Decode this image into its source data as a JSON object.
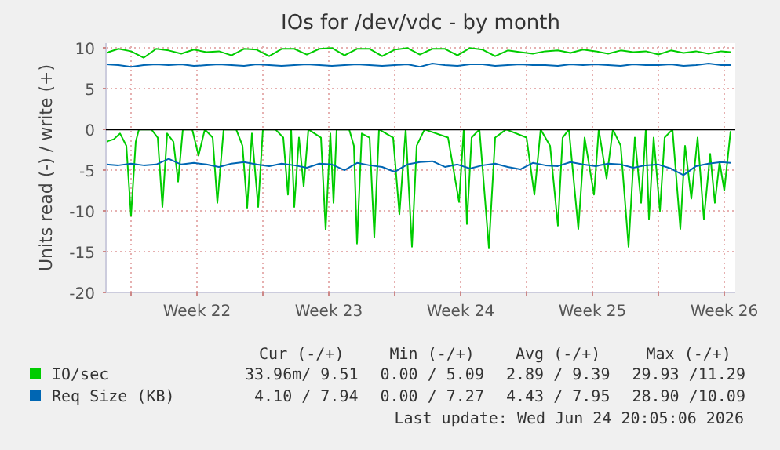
{
  "chart_data": {
    "type": "line",
    "title": "IOs for /dev/vdc - by month",
    "ylabel": "Units read (-) / write (+)",
    "xlim": [
      "2026-05-23T16:00",
      "2026-06-26T02:00"
    ],
    "ylim": [
      -20,
      10.6
    ],
    "xticks": [
      {
        "value": "2026-05-25",
        "label": null
      },
      {
        "value": "2026-05-28T12:00",
        "label": "Week 22"
      },
      {
        "value": "2026-06-01",
        "label": null
      },
      {
        "value": "2026-06-04T12:00",
        "label": "Week 23"
      },
      {
        "value": "2026-06-08",
        "label": null
      },
      {
        "value": "2026-06-11T12:00",
        "label": "Week 24"
      },
      {
        "value": "2026-06-15",
        "label": null
      },
      {
        "value": "2026-06-18T12:00",
        "label": "Week 25"
      },
      {
        "value": "2026-06-22",
        "label": null
      },
      {
        "value": "2026-06-25T12:00",
        "label": "Week 26"
      }
    ],
    "yticks": [
      -20,
      -15,
      -10,
      -5,
      0,
      5,
      10
    ],
    "grid": true,
    "legend": "bottom",
    "line_style": "solid",
    "ref_lines": [
      {
        "axis": "y",
        "value": 0,
        "color": "#000000"
      }
    ],
    "annotations": [
      "Cur (-/+)",
      "Min (-/+)",
      "Avg (-/+)",
      "Max (-/+)",
      "33.96m/ 9.51",
      "0.00 / 5.09",
      "2.89 / 9.39",
      "29.93 /11.29",
      "4.10 / 7.94",
      "0.00 / 7.27",
      "4.43 / 7.95",
      "28.90 /10.09",
      "Last update: Wed Jun 24 20:05:06 2026"
    ],
    "series": [
      {
        "name": "IO/sec",
        "color": "#00cc00",
        "x": [
          "2026-05-23T16:00",
          "2026-05-24T08:00",
          "2026-05-25T00:00",
          "2026-05-25T16:00",
          "2026-05-26T08:00",
          "2026-05-27T00:00",
          "2026-05-27T16:00",
          "2026-05-28T08:00",
          "2026-05-29T00:00",
          "2026-05-29T16:00",
          "2026-05-30T08:00",
          "2026-05-31T00:00",
          "2026-05-31T16:00",
          "2026-06-01T08:00",
          "2026-06-02T00:00",
          "2026-06-02T16:00",
          "2026-06-03T08:00",
          "2026-06-04T00:00",
          "2026-06-04T16:00",
          "2026-06-05T08:00",
          "2026-06-06T00:00",
          "2026-06-06T16:00",
          "2026-06-07T08:00",
          "2026-06-08T00:00",
          "2026-06-08T16:00",
          "2026-06-09T08:00",
          "2026-06-10T00:00",
          "2026-06-10T16:00",
          "2026-06-11T08:00",
          "2026-06-12T00:00",
          "2026-06-12T16:00",
          "2026-06-13T08:00",
          "2026-06-14T00:00",
          "2026-06-14T16:00",
          "2026-06-15T08:00",
          "2026-06-16T00:00",
          "2026-06-16T16:00",
          "2026-06-17T08:00",
          "2026-06-18T00:00",
          "2026-06-18T16:00",
          "2026-06-19T08:00",
          "2026-06-20T00:00",
          "2026-06-20T16:00",
          "2026-06-21T08:00",
          "2026-06-22T00:00",
          "2026-06-22T16:00",
          "2026-06-23T08:00",
          "2026-06-24T00:00",
          "2026-06-24T16:00",
          "2026-06-25T08:00",
          "2026-06-25T20:00"
        ],
        "values": [
          9.4,
          9.9,
          9.6,
          8.8,
          9.9,
          9.7,
          9.3,
          9.8,
          9.5,
          9.6,
          9.1,
          9.9,
          9.8,
          9.0,
          9.9,
          9.9,
          9.2,
          9.9,
          10.0,
          9.1,
          9.9,
          9.9,
          9.0,
          9.8,
          10.0,
          9.2,
          9.9,
          9.9,
          9.1,
          10.0,
          9.8,
          9.0,
          9.7,
          9.5,
          9.3,
          9.6,
          9.7,
          9.4,
          9.8,
          9.6,
          9.3,
          9.7,
          9.5,
          9.6,
          9.2,
          9.7,
          9.4,
          9.6,
          9.3,
          9.6,
          9.5
        ]
      },
      {
        "color": "#00cc00",
        "x": [
          "2026-05-23T16:00",
          "2026-05-24T02:00",
          "2026-05-24T10:00",
          "2026-05-24T18:00",
          "2026-05-25T00:00",
          "2026-05-25T06:00",
          "2026-05-25T10:00",
          "2026-05-26T02:00",
          "2026-05-26T10:00",
          "2026-05-26T16:00",
          "2026-05-26T22:00",
          "2026-05-27T06:00",
          "2026-05-27T12:00",
          "2026-05-27T18:00",
          "2026-05-28T06:00",
          "2026-05-28T14:00",
          "2026-05-28T22:00",
          "2026-05-29T08:00",
          "2026-05-29T14:00",
          "2026-05-29T22:00",
          "2026-05-30T14:00",
          "2026-05-30T22:00",
          "2026-05-31T04:00",
          "2026-05-31T10:00",
          "2026-05-31T18:00",
          "2026-06-01T00:00",
          "2026-06-01T16:00",
          "2026-06-02T02:00",
          "2026-06-02T08:00",
          "2026-06-02T12:00",
          "2026-06-02T16:00",
          "2026-06-02T22:00",
          "2026-06-03T04:00",
          "2026-06-03T10:00",
          "2026-06-04T02:00",
          "2026-06-04T08:00",
          "2026-06-04T14:00",
          "2026-06-04T18:00",
          "2026-06-04T22:00",
          "2026-06-05T14:00",
          "2026-06-05T20:00",
          "2026-06-06T00:00",
          "2026-06-06T06:00",
          "2026-06-06T16:00",
          "2026-06-06T22:00",
          "2026-06-07T04:00",
          "2026-06-07T22:00",
          "2026-06-08T06:00",
          "2026-06-08T14:00",
          "2026-06-08T22:00",
          "2026-06-09T04:00",
          "2026-06-09T14:00",
          "2026-06-10T20:00",
          "2026-06-11T10:00",
          "2026-06-11T16:00",
          "2026-06-11T20:00",
          "2026-06-12T02:00",
          "2026-06-12T12:00",
          "2026-06-13T00:00",
          "2026-06-13T08:00",
          "2026-06-13T22:00",
          "2026-06-15T00:00",
          "2026-06-15T10:00",
          "2026-06-15T18:00",
          "2026-06-16T06:00",
          "2026-06-16T16:00",
          "2026-06-16T22:00",
          "2026-06-17T06:00",
          "2026-06-17T18:00",
          "2026-06-18T02:00",
          "2026-06-18T14:00",
          "2026-06-18T20:00",
          "2026-06-19T06:00",
          "2026-06-19T14:00",
          "2026-06-20T00:00",
          "2026-06-20T10:00",
          "2026-06-20T18:00",
          "2026-06-21T02:00",
          "2026-06-21T08:00",
          "2026-06-21T12:00",
          "2026-06-21T18:00",
          "2026-06-22T02:00",
          "2026-06-22T08:00",
          "2026-06-22T18:00",
          "2026-06-23T04:00",
          "2026-06-23T10:00",
          "2026-06-23T18:00",
          "2026-06-24T02:00",
          "2026-06-24T10:00",
          "2026-06-24T18:00",
          "2026-06-25T00:00",
          "2026-06-25T06:00",
          "2026-06-25T12:00",
          "2026-06-25T20:00"
        ],
        "values": [
          -1.5,
          -1.2,
          -0.5,
          -2,
          -10.6,
          -1.5,
          0,
          0,
          -1,
          -9.5,
          -0.5,
          -1.5,
          -6.4,
          0,
          0,
          -3.2,
          0,
          -1,
          -9,
          0,
          0,
          -2,
          -9.6,
          -0.5,
          -9.5,
          0,
          0,
          -1,
          -8,
          0,
          -9.5,
          -1,
          -7,
          0,
          -1,
          -12.3,
          -0.5,
          -9,
          0,
          0,
          -2,
          -14,
          -0.5,
          -1,
          -13.2,
          0,
          -1,
          -10.4,
          0,
          -14.4,
          -2,
          0,
          -1,
          -8.9,
          0,
          -11.6,
          -1,
          0,
          -14.5,
          -1,
          0,
          -1,
          -8,
          0,
          -2,
          -11.8,
          -1,
          0,
          -12.2,
          -1,
          -8,
          0,
          -6,
          0,
          -2,
          -14.4,
          -1,
          -9,
          0,
          -11,
          -1,
          -10,
          -1,
          0,
          -12.2,
          -2,
          -8.5,
          -1,
          -11,
          -3,
          -9,
          -4,
          -7.5,
          -0.2
        ]
      },
      {
        "name": "Req Size (KB)",
        "color": "#0066b3",
        "x": [
          "2026-05-23T16:00",
          "2026-05-24T08:00",
          "2026-05-25T00:00",
          "2026-05-25T16:00",
          "2026-05-26T08:00",
          "2026-05-27T00:00",
          "2026-05-27T16:00",
          "2026-05-28T08:00",
          "2026-05-29T00:00",
          "2026-05-29T16:00",
          "2026-05-30T08:00",
          "2026-05-31T00:00",
          "2026-05-31T16:00",
          "2026-06-01T08:00",
          "2026-06-02T00:00",
          "2026-06-02T16:00",
          "2026-06-03T08:00",
          "2026-06-04T00:00",
          "2026-06-04T16:00",
          "2026-06-05T08:00",
          "2026-06-06T00:00",
          "2026-06-06T16:00",
          "2026-06-07T08:00",
          "2026-06-08T00:00",
          "2026-06-08T16:00",
          "2026-06-09T08:00",
          "2026-06-10T00:00",
          "2026-06-10T16:00",
          "2026-06-11T08:00",
          "2026-06-12T00:00",
          "2026-06-12T16:00",
          "2026-06-13T08:00",
          "2026-06-14T00:00",
          "2026-06-14T16:00",
          "2026-06-15T08:00",
          "2026-06-16T00:00",
          "2026-06-16T16:00",
          "2026-06-17T08:00",
          "2026-06-18T00:00",
          "2026-06-18T16:00",
          "2026-06-19T08:00",
          "2026-06-20T00:00",
          "2026-06-20T16:00",
          "2026-06-21T08:00",
          "2026-06-22T00:00",
          "2026-06-22T16:00",
          "2026-06-23T08:00",
          "2026-06-24T00:00",
          "2026-06-24T16:00",
          "2026-06-25T08:00",
          "2026-06-25T20:00"
        ],
        "values": [
          8.0,
          7.9,
          7.7,
          7.9,
          8.0,
          7.9,
          8.0,
          7.8,
          7.9,
          8.0,
          7.9,
          7.8,
          8.0,
          7.9,
          7.8,
          7.9,
          8.0,
          7.9,
          7.8,
          7.9,
          8.0,
          7.9,
          7.8,
          7.9,
          8.0,
          7.7,
          8.1,
          7.9,
          7.8,
          8.0,
          8.0,
          7.8,
          7.9,
          8.0,
          7.9,
          7.9,
          7.8,
          8.0,
          7.9,
          8.0,
          7.9,
          7.8,
          8.0,
          7.9,
          7.9,
          8.0,
          7.8,
          7.9,
          8.1,
          7.9,
          7.9
        ]
      },
      {
        "color": "#0066b3",
        "x": [
          "2026-05-23T16:00",
          "2026-05-24T08:00",
          "2026-05-25T00:00",
          "2026-05-25T16:00",
          "2026-05-26T08:00",
          "2026-05-27T00:00",
          "2026-05-27T16:00",
          "2026-05-28T08:00",
          "2026-05-29T00:00",
          "2026-05-29T16:00",
          "2026-05-30T08:00",
          "2026-05-31T00:00",
          "2026-05-31T16:00",
          "2026-06-01T08:00",
          "2026-06-02T00:00",
          "2026-06-02T16:00",
          "2026-06-03T08:00",
          "2026-06-04T00:00",
          "2026-06-04T16:00",
          "2026-06-05T08:00",
          "2026-06-06T00:00",
          "2026-06-06T16:00",
          "2026-06-07T08:00",
          "2026-06-08T00:00",
          "2026-06-08T16:00",
          "2026-06-09T08:00",
          "2026-06-10T00:00",
          "2026-06-10T16:00",
          "2026-06-11T08:00",
          "2026-06-12T00:00",
          "2026-06-12T16:00",
          "2026-06-13T08:00",
          "2026-06-14T00:00",
          "2026-06-14T16:00",
          "2026-06-15T08:00",
          "2026-06-16T00:00",
          "2026-06-16T16:00",
          "2026-06-17T08:00",
          "2026-06-18T00:00",
          "2026-06-18T16:00",
          "2026-06-19T08:00",
          "2026-06-20T00:00",
          "2026-06-20T16:00",
          "2026-06-21T08:00",
          "2026-06-22T00:00",
          "2026-06-22T16:00",
          "2026-06-23T08:00",
          "2026-06-24T00:00",
          "2026-06-24T16:00",
          "2026-06-25T08:00",
          "2026-06-25T20:00"
        ],
        "values": [
          -4.3,
          -4.4,
          -4.2,
          -4.4,
          -4.3,
          -3.6,
          -4.3,
          -4.1,
          -4.3,
          -4.6,
          -4.2,
          -4.0,
          -4.3,
          -4.5,
          -4.2,
          -4.4,
          -4.7,
          -4.2,
          -4.3,
          -5.0,
          -4.1,
          -4.4,
          -4.6,
          -5.2,
          -4.3,
          -4.0,
          -3.9,
          -4.6,
          -4.3,
          -4.8,
          -4.4,
          -4.2,
          -4.6,
          -4.9,
          -4.1,
          -4.4,
          -4.5,
          -4.0,
          -4.3,
          -4.5,
          -4.2,
          -4.3,
          -4.7,
          -4.4,
          -4.3,
          -4.8,
          -5.6,
          -4.5,
          -4.2,
          -4.0,
          -4.1
        ]
      }
    ]
  }
}
